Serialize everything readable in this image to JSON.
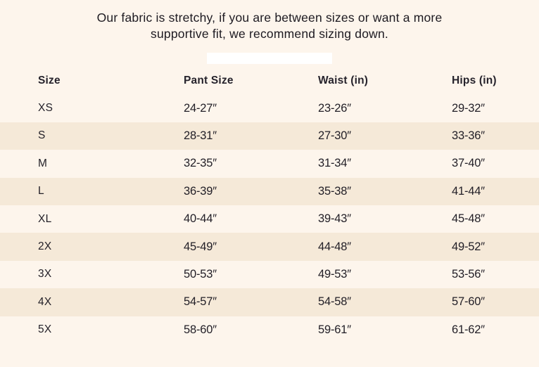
{
  "page": {
    "background": "#fdf5ec",
    "stripe_color": "#f5e9d8",
    "text_color": "#211e26",
    "highlight_bar_color": "#ffffff"
  },
  "note": {
    "lines": [
      "Our fabric is stretchy, if you are between sizes or want a more",
      "supportive fit, we recommend sizing down."
    ]
  },
  "size_chart": {
    "columns": [
      "Size",
      "Pant Size",
      "Waist (in)",
      "Hips (in)"
    ],
    "rows": [
      {
        "size": "XS",
        "pant_size": "24-27″",
        "waist": "23-26″",
        "hips": "29-32″"
      },
      {
        "size": "S",
        "pant_size": "28-31″",
        "waist": "27-30″",
        "hips": "33-36″"
      },
      {
        "size": "M",
        "pant_size": "32-35″",
        "waist": "31-34″",
        "hips": "37-40″"
      },
      {
        "size": "L",
        "pant_size": "36-39″",
        "waist": "35-38″",
        "hips": "41-44″"
      },
      {
        "size": "XL",
        "pant_size": "40-44″",
        "waist": "39-43″",
        "hips": "45-48″"
      },
      {
        "size": "2X",
        "pant_size": "45-49″",
        "waist": "44-48″",
        "hips": "49-52″"
      },
      {
        "size": "3X",
        "pant_size": "50-53″",
        "waist": "49-53″",
        "hips": "53-56″"
      },
      {
        "size": "4X",
        "pant_size": "54-57″",
        "waist": "54-58″",
        "hips": "57-60″"
      },
      {
        "size": "5X",
        "pant_size": "58-60″",
        "waist": "59-61″",
        "hips": "61-62″"
      }
    ]
  }
}
